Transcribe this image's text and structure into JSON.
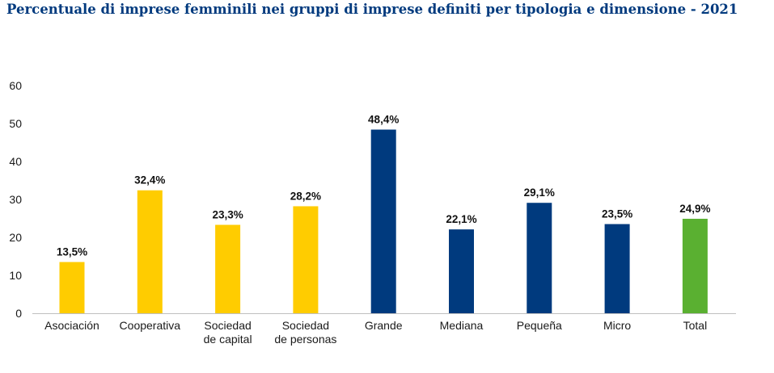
{
  "chart_data": {
    "type": "bar",
    "title": "Percentuale di imprese femminili nei gruppi di imprese definiti per tipologia e dimensione - 2021",
    "xlabel": "",
    "ylabel": "",
    "ylim": [
      0,
      60
    ],
    "yticks": [
      "0",
      "10",
      "20",
      "30",
      "40",
      "50",
      "60"
    ],
    "grid": false,
    "categories": [
      [
        "Asociación"
      ],
      [
        "Cooperativa"
      ],
      [
        "Sociedad",
        "de capital"
      ],
      [
        "Sociedad",
        "de personas"
      ],
      [
        "Grande"
      ],
      [
        "Mediana"
      ],
      [
        "Pequeña"
      ],
      [
        "Micro"
      ],
      [
        "Total"
      ]
    ],
    "values": [
      13.5,
      32.4,
      23.3,
      28.2,
      48.4,
      22.1,
      29.1,
      23.5,
      24.9
    ],
    "data_labels": [
      "13,5%",
      "32,4%",
      "23,3%",
      "28,2%",
      "48,4%",
      "22,1%",
      "29,1%",
      "23,5%",
      "24,9%"
    ],
    "colors": [
      "#ffcc00",
      "#ffcc00",
      "#ffcc00",
      "#ffcc00",
      "#003a7e",
      "#003a7e",
      "#003a7e",
      "#003a7e",
      "#5ab031"
    ]
  }
}
